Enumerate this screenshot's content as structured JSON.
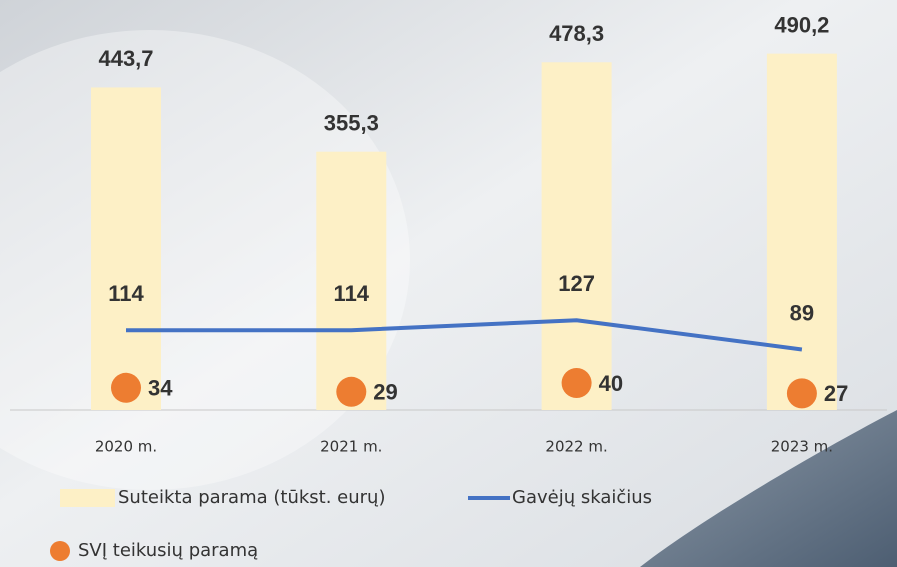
{
  "chart_data": {
    "type": "combo",
    "categories": [
      "2020 m.",
      "2021 m.",
      "2022 m.",
      "2023 m."
    ],
    "series": [
      {
        "name": "Suteikta parama (tūkst. eurų)",
        "type": "bar",
        "color": "#fdf0c6",
        "values": [
          443.7,
          355.3,
          478.3,
          490.2
        ],
        "value_labels": [
          "443,7",
          "355,3",
          "478,3",
          "490,2"
        ]
      },
      {
        "name": "Gavėjų skaičius",
        "type": "line",
        "color": "#4472c4",
        "values": [
          114,
          114,
          127,
          89
        ]
      },
      {
        "name": "SVĮ teikusių paramą",
        "type": "scatter",
        "color": "#ed7d31",
        "values": [
          34,
          29,
          40,
          27
        ]
      }
    ]
  }
}
